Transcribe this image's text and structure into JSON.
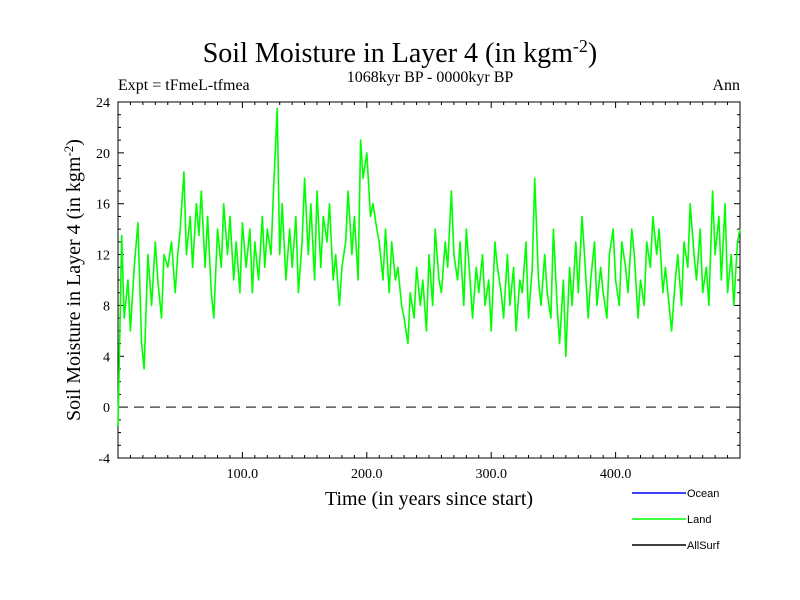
{
  "chart_data": {
    "type": "line",
    "title": "Soil Moisture in Layer 4 (in kgm",
    "title_sup": "-2",
    "title_close": ")",
    "subtitle": "1068kyr BP - 0000kyr BP",
    "left_label": "Expt = tFmeL-tfmea",
    "right_label": "Ann",
    "xlabel": "Time (in years since start)",
    "ylabel": "Soil Moisture in Layer 4 (in kgm",
    "ylabel_sup": "-2",
    "ylabel_close": ")",
    "xlim": [
      0,
      500
    ],
    "ylim": [
      -4,
      24
    ],
    "x_ticks": [
      100,
      200,
      300,
      400
    ],
    "x_tick_labels": [
      "100.0",
      "200.0",
      "300.0",
      "400.0"
    ],
    "y_ticks": [
      -4,
      0,
      4,
      8,
      12,
      16,
      20,
      24
    ],
    "y_tick_labels": [
      "-4",
      "0",
      "4",
      "8",
      "12",
      "16",
      "20",
      "24"
    ],
    "zero_line": 0,
    "legend": [
      {
        "name": "Ocean",
        "color": "#0000ff"
      },
      {
        "name": "Land",
        "color": "#00ff00"
      },
      {
        "name": "AllSurf",
        "color": "#000000"
      }
    ],
    "series": [
      {
        "name": "Land",
        "color": "#00ff00",
        "x": [
          0,
          3,
          5,
          8,
          10,
          13,
          16,
          19,
          21,
          24,
          27,
          30,
          32,
          35,
          37,
          40,
          43,
          46,
          48,
          50,
          53,
          55,
          58,
          60,
          63,
          65,
          67,
          70,
          72,
          75,
          77,
          80,
          83,
          85,
          88,
          90,
          93,
          95,
          98,
          100,
          103,
          106,
          108,
          110,
          113,
          116,
          118,
          120,
          123,
          125,
          128,
          130,
          132,
          135,
          138,
          140,
          143,
          145,
          148,
          150,
          153,
          155,
          158,
          160,
          163,
          165,
          168,
          170,
          173,
          175,
          178,
          180,
          183,
          185,
          188,
          190,
          193,
          195,
          197,
          200,
          203,
          205,
          208,
          210,
          213,
          215,
          218,
          220,
          223,
          225,
          228,
          230,
          233,
          235,
          238,
          240,
          243,
          245,
          248,
          250,
          253,
          255,
          258,
          260,
          263,
          265,
          268,
          270,
          273,
          275,
          278,
          280,
          283,
          285,
          288,
          290,
          293,
          295,
          298,
          300,
          303,
          305,
          308,
          310,
          313,
          315,
          318,
          320,
          323,
          325,
          328,
          330,
          333,
          335,
          338,
          340,
          343,
          345,
          348,
          350,
          353,
          355,
          358,
          360,
          363,
          365,
          368,
          370,
          373,
          375,
          378,
          380,
          383,
          385,
          388,
          390,
          393,
          395,
          398,
          400,
          403,
          405,
          408,
          410,
          413,
          415,
          418,
          420,
          423,
          425,
          428,
          430,
          433,
          435,
          438,
          440,
          443,
          445,
          448,
          450,
          453,
          455,
          458,
          460,
          463,
          465,
          468,
          470,
          473,
          475,
          478,
          480,
          483,
          485,
          488,
          490,
          493,
          495,
          498,
          500
        ],
        "values": [
          -1.5,
          13.5,
          7,
          10,
          6,
          11,
          14.5,
          5,
          3,
          12,
          8,
          13,
          10,
          7,
          12,
          11,
          13,
          9,
          12,
          14,
          18.5,
          12,
          15,
          11,
          16,
          13.5,
          17,
          11,
          15,
          9,
          7,
          14,
          11,
          16,
          12,
          15,
          10,
          13,
          9,
          14.5,
          11,
          14,
          9,
          13,
          10,
          15,
          11,
          14,
          12,
          17,
          23.5,
          12,
          16,
          10,
          14,
          11,
          15,
          9,
          13,
          18,
          12,
          16,
          10,
          17,
          11,
          15,
          13,
          16,
          10,
          12,
          8,
          11,
          13,
          17,
          12,
          15,
          10,
          21,
          18,
          20,
          15,
          16,
          14,
          13,
          10,
          14,
          9,
          13,
          10,
          11,
          8,
          7,
          5,
          9,
          7,
          11,
          8,
          10,
          6,
          12,
          8,
          14,
          10,
          9,
          13,
          11,
          17,
          12,
          10,
          13,
          8,
          14,
          10,
          7,
          11,
          9,
          12,
          8,
          10,
          6,
          13,
          11,
          9,
          7,
          12,
          8,
          11,
          6,
          10,
          9,
          13,
          7,
          11,
          18,
          10,
          8,
          12,
          9,
          7,
          14,
          8,
          5,
          10,
          4,
          11,
          8,
          13,
          9,
          15,
          12,
          7,
          10,
          13,
          8,
          11,
          9,
          7,
          12,
          14,
          10,
          8,
          13,
          11,
          9,
          14,
          12,
          7,
          10,
          8,
          13,
          11,
          15,
          12,
          14,
          9,
          11,
          8,
          6,
          10,
          12,
          8,
          13,
          11,
          16,
          12,
          10,
          14,
          9,
          11,
          8,
          17,
          12,
          15,
          10,
          16,
          9,
          12,
          8,
          13,
          14
        ]
      },
      {
        "name": "Ocean",
        "color": "#0000ff",
        "x": [],
        "values": []
      },
      {
        "name": "AllSurf",
        "color": "#000000",
        "x": [],
        "values": []
      }
    ]
  }
}
